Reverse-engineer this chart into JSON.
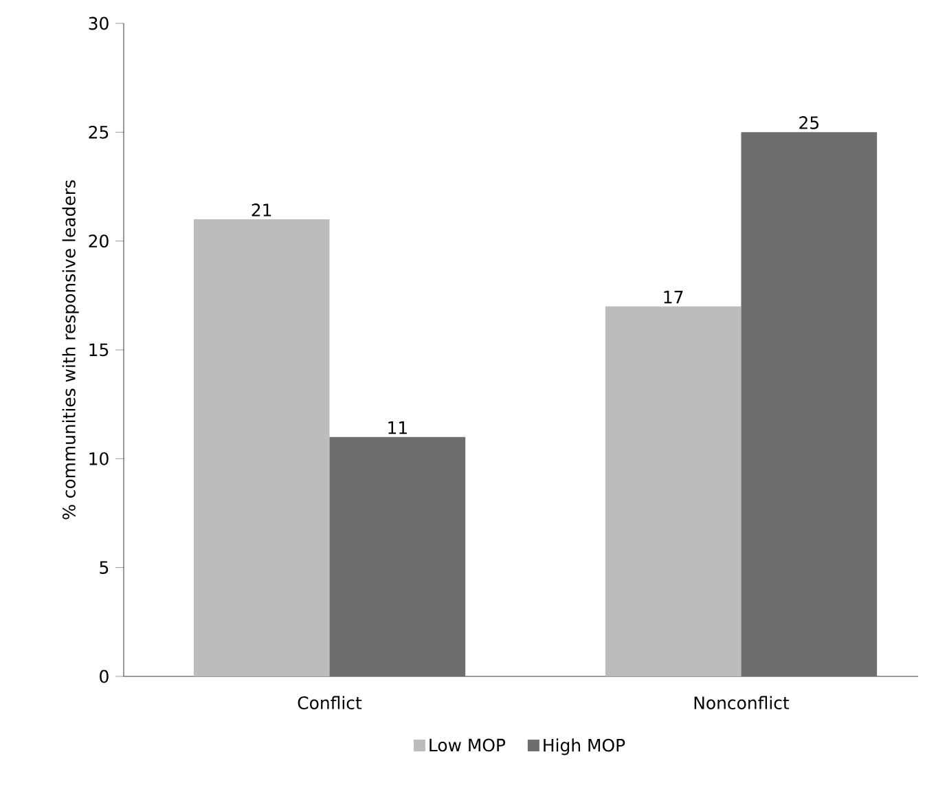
{
  "chart_data": {
    "type": "bar",
    "ylabel": "% communities with responsive leaders",
    "categories": [
      "Conflict",
      "Nonconflict"
    ],
    "series": [
      {
        "name": "Low MOP",
        "color": "#bbbcbe",
        "values": [
          21,
          17
        ]
      },
      {
        "name": "High MOP",
        "color": "#6d6e70",
        "values": [
          11,
          25
        ]
      }
    ],
    "ylim": [
      0,
      30
    ],
    "yticks": [
      0,
      5,
      10,
      15,
      20,
      25,
      30
    ],
    "data_labels": true,
    "legend": "bottom",
    "grid": false
  }
}
